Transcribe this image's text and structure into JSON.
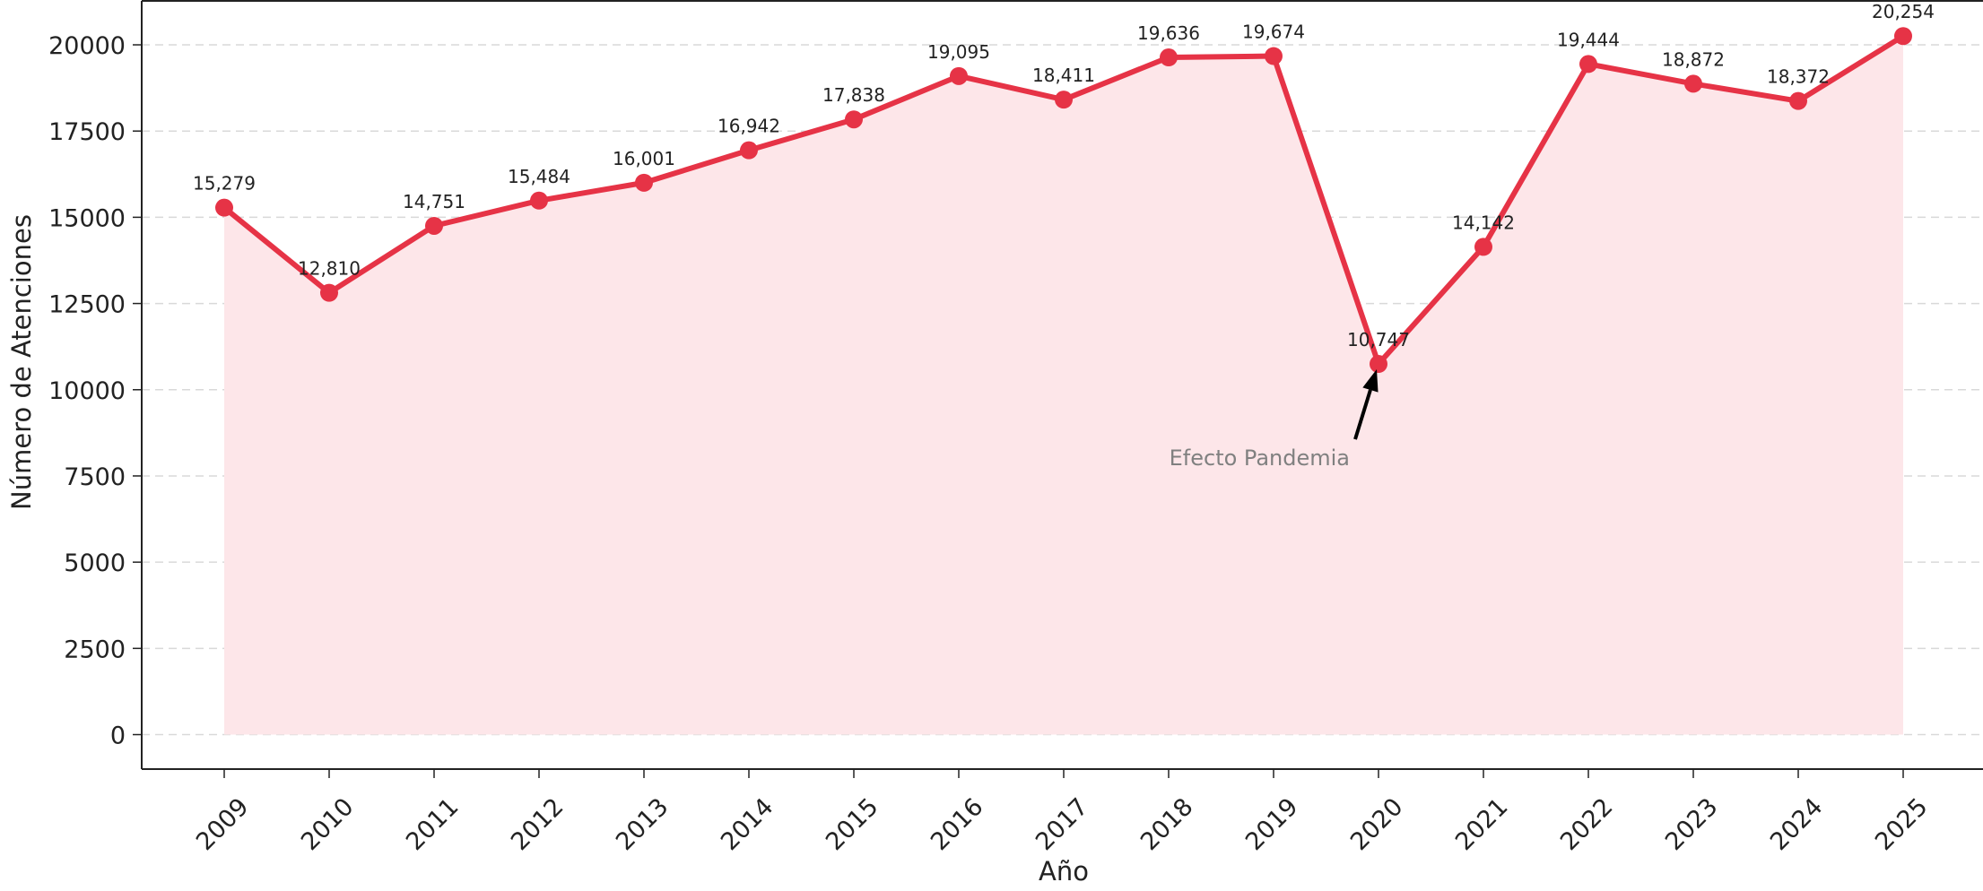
{
  "chart_data": {
    "type": "line",
    "title": "",
    "xlabel": "Año",
    "ylabel": "Número de Atenciones",
    "x": [
      "2009",
      "2010",
      "2011",
      "2012",
      "2013",
      "2014",
      "2015",
      "2016",
      "2017",
      "2018",
      "2019",
      "2020",
      "2021",
      "2022",
      "2023",
      "2024",
      "2025"
    ],
    "series": [
      {
        "values": [
          15279,
          12810,
          14751,
          15484,
          16001,
          16942,
          17838,
          19095,
          18411,
          19636,
          19674,
          10747,
          14142,
          19444,
          18872,
          18372,
          20254
        ]
      }
    ],
    "data_labels": [
      "15,279",
      "12,810",
      "14,751",
      "15,484",
      "16,001",
      "16,942",
      "17,838",
      "19,095",
      "18,411",
      "19,636",
      "19,674",
      "10,747",
      "14,142",
      "19,444",
      "18,872",
      "18,372",
      "20,254"
    ],
    "y_ticks": [
      "0",
      "2500",
      "5000",
      "7500",
      "10000",
      "12500",
      "15000",
      "17500",
      "20000"
    ],
    "ylim": [
      -1000,
      21300
    ],
    "grid": "horizontal dashed",
    "legend": "none",
    "fill_under_line": true,
    "annotation": {
      "text": "Efecto Pandemia",
      "x": "2020",
      "y": 10747,
      "arrow": true
    },
    "colors": {
      "line": "#e63346",
      "fill": "#fde6e9",
      "grid": "#d9d9d9",
      "axis": "#222222",
      "annotation_text": "#808080"
    }
  }
}
